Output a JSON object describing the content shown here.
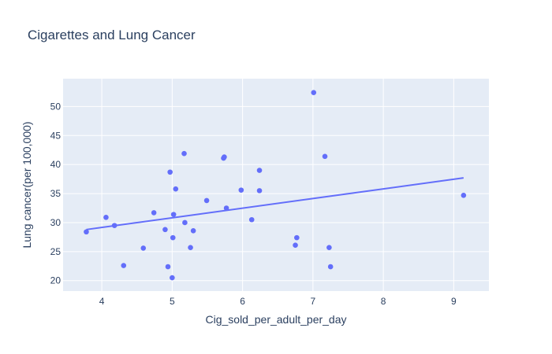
{
  "chart_data": {
    "type": "scatter",
    "title": "Cigarettes and Lung Cancer",
    "xlabel": "Cig_sold_per_adult_per_day",
    "ylabel": "Lung cancer(per 100,000)",
    "xlim": [
      3.45,
      9.5
    ],
    "ylim": [
      18.2,
      54.8
    ],
    "x_ticks": [
      4,
      5,
      6,
      7,
      8,
      9
    ],
    "y_ticks": [
      20,
      25,
      30,
      35,
      40,
      45,
      50
    ],
    "grid": true,
    "legend": "none",
    "colors": {
      "plot_bg": "#e5ecf6",
      "grid": "#ffffff",
      "marker": "#636efa",
      "trendline": "#636efa",
      "text": "#2a3f5f"
    },
    "series": [
      {
        "mode": "markers",
        "x": [
          3.78,
          4.06,
          4.18,
          4.31,
          4.59,
          4.74,
          4.9,
          4.94,
          4.97,
          5.0,
          5.01,
          5.02,
          5.05,
          5.17,
          5.18,
          5.26,
          5.3,
          5.49,
          5.73,
          5.74,
          5.77,
          5.98,
          6.13,
          6.24,
          6.24,
          6.75,
          6.77,
          7.01,
          7.17,
          7.23,
          7.25,
          9.14
        ],
        "y": [
          28.4,
          30.9,
          29.5,
          22.6,
          25.6,
          31.7,
          28.8,
          22.4,
          38.7,
          20.5,
          27.4,
          31.4,
          35.8,
          41.9,
          30.0,
          25.7,
          28.6,
          33.8,
          41.1,
          41.3,
          32.5,
          35.6,
          30.5,
          39.0,
          35.5,
          26.1,
          27.4,
          52.4,
          41.4,
          25.7,
          22.4,
          34.7
        ]
      },
      {
        "mode": "lines",
        "x": [
          3.78,
          9.14
        ],
        "y": [
          28.8,
          37.7
        ]
      }
    ]
  }
}
